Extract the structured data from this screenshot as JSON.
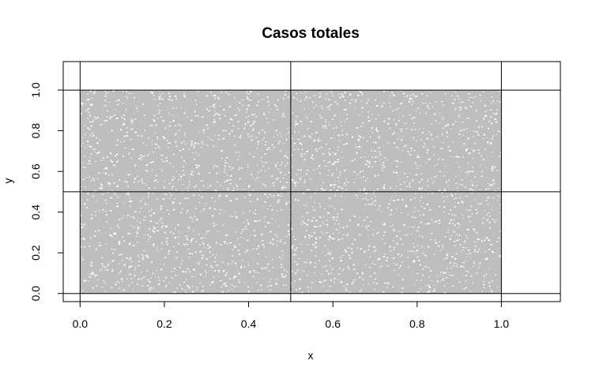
{
  "chart_data": {
    "type": "scatter",
    "title": "Casos totales",
    "xlabel": "x",
    "ylabel": "y",
    "xlim": [
      -0.04,
      1.14
    ],
    "ylim": [
      -0.04,
      1.14
    ],
    "x_ticks": [
      "0.0",
      "0.2",
      "0.4",
      "0.6",
      "0.8",
      "1.0"
    ],
    "y_ticks": [
      "0.0",
      "0.2",
      "0.4",
      "0.6",
      "0.8",
      "1.0"
    ],
    "x_tick_values": [
      0,
      0.2,
      0.4,
      0.6,
      0.8,
      1.0
    ],
    "y_tick_values": [
      0,
      0.2,
      0.4,
      0.6,
      0.8,
      1.0
    ],
    "points": {
      "distribution": "uniform",
      "x_range": [
        0,
        1
      ],
      "y_range": [
        0,
        1
      ],
      "color": "#bebebe"
    },
    "reference_lines": {
      "vertical": [
        0,
        0.5,
        1
      ],
      "horizontal": [
        0,
        0.5,
        1
      ],
      "color": "#000000"
    },
    "grid": false,
    "legend": "none"
  }
}
